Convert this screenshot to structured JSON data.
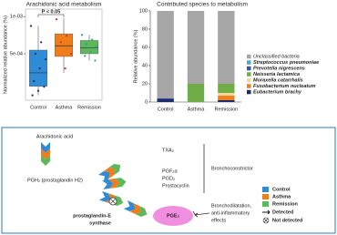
{
  "chart_data": [
    {
      "type": "box",
      "title": "Arachidonic acid metabolism",
      "y_label": "Normalized relative abundance (%)",
      "annotation": "P < 0.05",
      "log_scale": true,
      "categories": [
        "Control",
        "Asthma",
        "Remission"
      ],
      "boxes": [
        {
          "color": "#2e8bd6",
          "point_color": "#1f2a66",
          "whisker_low": 0.00023,
          "q1": 0.000272,
          "median": 0.00035,
          "q3": 0.000535,
          "whisker_high": 0.00084,
          "points": [
            0.00084,
            0.00062,
            0.0005,
            0.00045,
            0.00038,
            0.0003,
            0.00027,
            0.00025,
            0.00023
          ]
        },
        {
          "color": "#f07d1a",
          "point_color": "#c0392b",
          "whisker_low": 0.00035,
          "q1": 0.000475,
          "median": 0.00058,
          "q3": 0.000725,
          "whisker_high": 0.00097,
          "points": [
            0.00095,
            0.0007,
            0.00062,
            0.0005,
            0.00038
          ]
        },
        {
          "color": "#5cb85c",
          "point_color": "#2aa198",
          "whisker_low": 0.00044,
          "q1": 0.0005,
          "median": 0.00056,
          "q3": 0.00064,
          "whisker_high": 0.00071,
          "points": [
            0.00071,
            0.00065,
            0.0006,
            0.00057,
            0.00052,
            0.00048,
            0.00044
          ]
        }
      ],
      "ylim": [
        0.00021,
        0.00115
      ],
      "yticks": [
        {
          "value": 0.0005,
          "label": "5e-04"
        },
        {
          "value": 0.001,
          "label": "1e-03"
        }
      ]
    },
    {
      "type": "stacked_bar",
      "title": "Contributed species to metabolism",
      "y_label": "Relative abundance (%)",
      "categories": [
        "Control",
        "Asthma",
        "Remission"
      ],
      "series": [
        {
          "name": "Unclassified bacteria",
          "color": "#a6a6a6",
          "values": [
            96,
            80,
            80
          ]
        },
        {
          "name": "Streptococcus pneumoniae",
          "color": "#4bacc6",
          "values": [
            0,
            0,
            0
          ]
        },
        {
          "name": "Prevotella nigrescens",
          "color": "#2e5597",
          "values": [
            1,
            0,
            0
          ]
        },
        {
          "name": "Neisseria lactamica",
          "color": "#70ad47",
          "values": [
            0,
            20,
            10
          ]
        },
        {
          "name": "Moraxella catarrhalis",
          "color": "#f4d79a",
          "values": [
            0,
            0,
            3
          ]
        },
        {
          "name": "Fusobacterium nucleatum",
          "color": "#f08020",
          "values": [
            0,
            0,
            5
          ]
        },
        {
          "name": "Eubacterium brachy",
          "color": "#1f2a66",
          "values": [
            3,
            0,
            2
          ]
        }
      ],
      "ylim": [
        0,
        100
      ],
      "yticks": [
        0,
        20,
        40,
        60,
        80,
        100
      ]
    }
  ],
  "diagram": {
    "substrate": "Arachidonic acid",
    "intermediate": "PGH₂ (prostaglandin H2)",
    "products": [
      "TXA₂",
      "PGF₂α",
      "PGD₂",
      "Prostacyclin",
      "PGE₂"
    ],
    "enzyme": [
      "prostaglandin-E",
      "synthase"
    ],
    "effects": [
      [
        "Bronchoconstrictor"
      ],
      [
        "Bronchodilatation,",
        "anti-inflammatory",
        "effects"
      ]
    ],
    "legend": {
      "groups": [
        {
          "label": "Control",
          "color": "#2e8bd6"
        },
        {
          "label": "Asthma",
          "color": "#f07d1a"
        },
        {
          "label": "Remission",
          "color": "#5cb85c"
        }
      ],
      "detected": "Detected",
      "not_detected": "Not detected"
    }
  }
}
